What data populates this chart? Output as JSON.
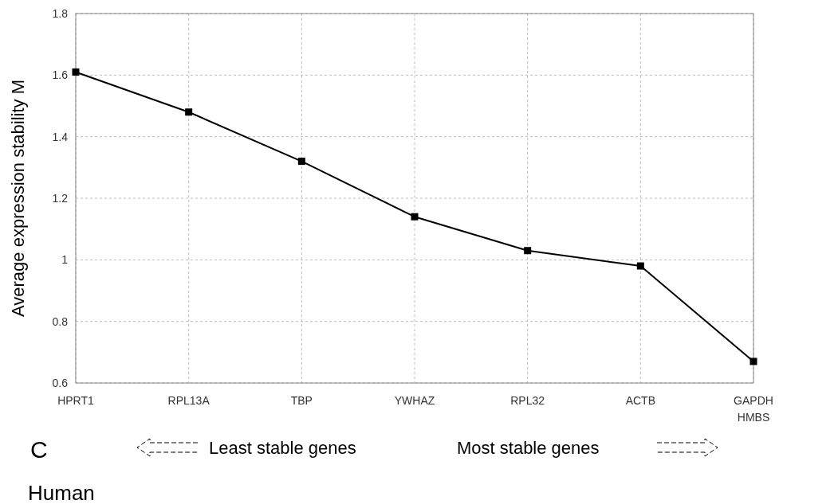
{
  "chart_data": {
    "type": "line",
    "ylabel": "Average expression stability M",
    "categories": [
      "HPRT1",
      "RPL13A",
      "TBP",
      "YWHAZ",
      "RPL32",
      "ACTB",
      "GAPDH\nHMBS"
    ],
    "series": [
      {
        "color": "#000000",
        "values": [
          1.61,
          1.48,
          1.32,
          1.14,
          1.03,
          0.98,
          0.67
        ]
      }
    ],
    "ylim": [
      0.6,
      1.8
    ],
    "yticks": [
      0.6,
      0.8,
      1,
      1.2,
      1.4,
      1.6,
      1.8
    ],
    "grid": true,
    "marker": "square",
    "line_style": "solid",
    "annotations": [
      "C",
      "Least stable genes",
      "Most stable genes",
      "Human"
    ]
  }
}
